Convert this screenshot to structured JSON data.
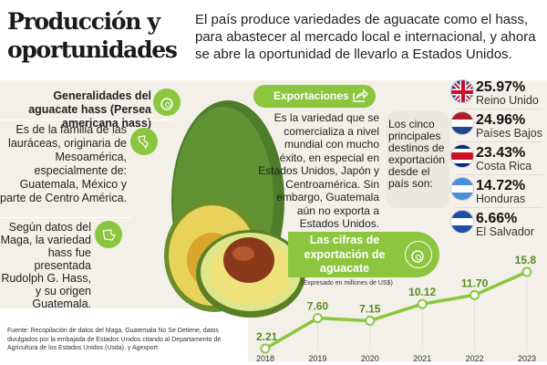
{
  "title": "Producción y oportunidades",
  "intro": "El país produce variedades de aguacate como el hass, para abastecer al mercado local e internacional, y ahora se abre la oportunidad de llevarlo a Estados Unidos.",
  "left": {
    "heading": "Generalidades del aguacate hass (Persea americana hass)",
    "p1": "Es de la familia de las lauráceas, originaria de Mesoamérica, especialmente de: Guatemala, México y parte de Centro América.",
    "p2": "Según datos del Maga, la variedad hass fue presentada Rudolph G. Hass, y su origen Guatemala."
  },
  "exports": {
    "label": "Exportaciones",
    "text": "Es la variedad que se comercializa a nivel mundial con mucho éxito, en especial en Estados Unidos, Japón y Centroamérica. Sin embargo, Guatemala aún no exporta a Estados Unidos."
  },
  "destinations": {
    "intro": "Los cinco principales destinos de exportación desde el país son:",
    "items": [
      {
        "pct": "25.97%",
        "country": "Reino Unido"
      },
      {
        "pct": "24.96%",
        "country": "Países Bajos"
      },
      {
        "pct": "23.43%",
        "country": "Costa Rica"
      },
      {
        "pct": "14.72%",
        "country": "Honduras"
      },
      {
        "pct": "6.66%",
        "country": "El Salvador"
      }
    ]
  },
  "source": "Fuente: Recopilación de datos del Maga, Guatemala No Se Detiene, datos divulgados por la embajada de Estados Unidos citando al Departamento de Agricultura de los Estados Unidos (Usda), y Agexport.",
  "colors": {
    "accent": "#8cc63f",
    "background": "#f2f0e8"
  },
  "chart_data": {
    "type": "line",
    "title": "Las cifras de exportación de aguacate",
    "subtitle": "(Expresado en millones de US$)",
    "categories": [
      "2018",
      "2019",
      "2020",
      "2021",
      "2022",
      "2023"
    ],
    "values": [
      2.21,
      7.6,
      7.15,
      10.12,
      11.7,
      15.8
    ],
    "labels": [
      "2.21",
      "7.60",
      "7.15",
      "10.12",
      "11.70",
      "15.8"
    ],
    "ylim": [
      2.21,
      15.8
    ],
    "grid": false
  }
}
